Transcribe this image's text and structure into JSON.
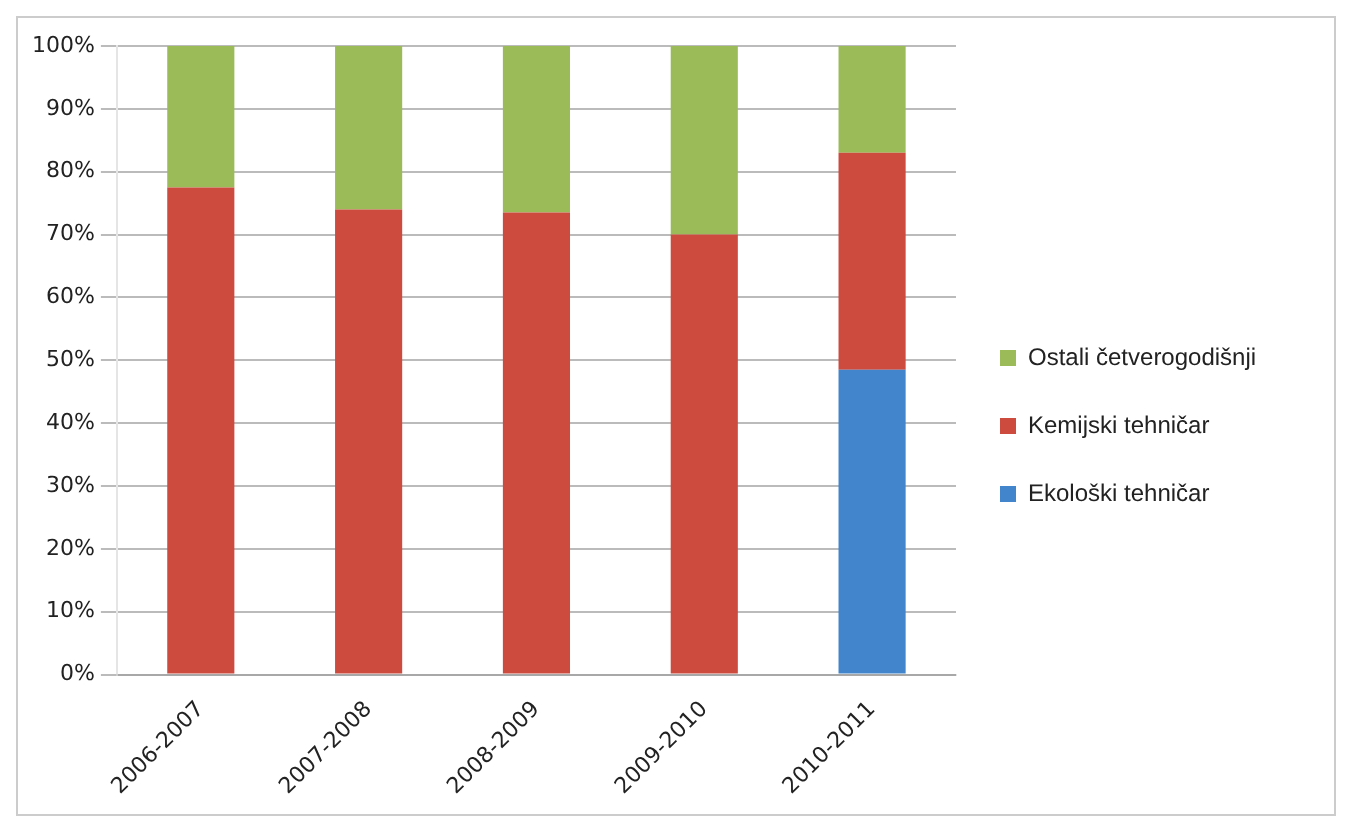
{
  "chart_data": {
    "type": "bar",
    "stacked": true,
    "categories": [
      "2006-2007",
      "2007-2008",
      "2008-2009",
      "2009-2010",
      "2010-2011"
    ],
    "series": [
      {
        "name": "Ekološki tehničar",
        "color": "#4285cc",
        "values": [
          0,
          0,
          0,
          0,
          48.5
        ]
      },
      {
        "name": "Kemijski tehničar",
        "color": "#cc4a3e",
        "values": [
          77.5,
          74,
          73.5,
          70,
          34.5
        ]
      },
      {
        "name": "Ostali četverogodišnji",
        "color": "#9bbb59",
        "values": [
          22.5,
          26,
          26.5,
          30,
          17
        ]
      }
    ],
    "ylim": [
      0,
      100
    ],
    "yticks": [
      {
        "value": 0,
        "label": "0%"
      },
      {
        "value": 10,
        "label": "10%"
      },
      {
        "value": 20,
        "label": "20%"
      },
      {
        "value": 30,
        "label": "30%"
      },
      {
        "value": 40,
        "label": "40%"
      },
      {
        "value": 50,
        "label": "50%"
      },
      {
        "value": 60,
        "label": "60%"
      },
      {
        "value": 70,
        "label": "70%"
      },
      {
        "value": 80,
        "label": "80%"
      },
      {
        "value": 90,
        "label": "90%"
      },
      {
        "value": 100,
        "label": "100%"
      }
    ],
    "grid": "y",
    "legend": "right"
  }
}
